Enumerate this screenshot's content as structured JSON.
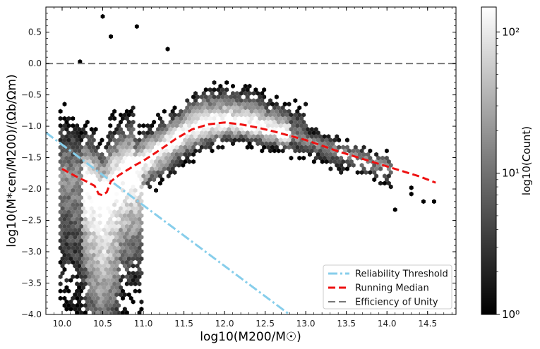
{
  "chart_data": {
    "type": "scatter",
    "subtype": "hexbin-density-with-lines",
    "title": "",
    "xlabel": "log10(M200/M☉)",
    "ylabel": "log10(M*cen/M200)/(Ωb/Ωm)",
    "xlim": [
      9.8,
      14.85
    ],
    "ylim": [
      -4.0,
      0.9
    ],
    "x_ticks": [
      "10.0",
      "10.5",
      "11.0",
      "11.5",
      "12.0",
      "12.5",
      "13.0",
      "13.5",
      "14.0",
      "14.5"
    ],
    "y_ticks": [
      "0.5",
      "0.0",
      "−0.5",
      "−1.0",
      "−1.5",
      "−2.0",
      "−2.5",
      "−3.0",
      "−3.5",
      "−4.0"
    ],
    "colorbar": {
      "label": "log10(Count)",
      "scale": "log",
      "range": [
        1,
        150
      ],
      "ticks": [
        "10⁰",
        "10¹",
        "10²"
      ],
      "colormap": "greys-reversed"
    },
    "series": [
      {
        "name": "Reliability Threshold",
        "style": "dashdot",
        "color": "#87ceeb",
        "x": [
          9.8,
          12.8
        ],
        "y": [
          -1.1,
          -4.0
        ]
      },
      {
        "name": "Running Median",
        "style": "dashed",
        "color": "#ee1111",
        "x": [
          10.0,
          10.1,
          10.2,
          10.3,
          10.4,
          10.45,
          10.5,
          10.55,
          10.6,
          10.7,
          10.8,
          10.9,
          11.0,
          11.2,
          11.4,
          11.6,
          11.8,
          12.0,
          12.2,
          12.4,
          12.6,
          12.8,
          13.0,
          13.2,
          13.4,
          13.6,
          13.8,
          14.0,
          14.2,
          14.4,
          14.6
        ],
        "y": [
          -1.68,
          -1.75,
          -1.82,
          -1.88,
          -1.95,
          -2.08,
          -2.1,
          -2.05,
          -1.88,
          -1.78,
          -1.7,
          -1.62,
          -1.55,
          -1.38,
          -1.2,
          -1.05,
          -0.97,
          -0.94,
          -0.97,
          -1.02,
          -1.08,
          -1.15,
          -1.22,
          -1.31,
          -1.4,
          -1.48,
          -1.56,
          -1.64,
          -1.72,
          -1.8,
          -1.9
        ]
      },
      {
        "name": "Efficiency of Unity",
        "style": "dashed",
        "color": "#777777",
        "x": [
          9.8,
          14.85
        ],
        "y": [
          0.0,
          0.0
        ]
      }
    ],
    "outliers": [
      {
        "x": 10.5,
        "y": 0.75
      },
      {
        "x": 10.6,
        "y": 0.43
      },
      {
        "x": 10.92,
        "y": 0.59
      },
      {
        "x": 10.22,
        "y": 0.03
      },
      {
        "x": 11.3,
        "y": 0.23
      },
      {
        "x": 14.1,
        "y": -2.33
      },
      {
        "x": 14.45,
        "y": -2.2
      },
      {
        "x": 14.58,
        "y": -2.2
      },
      {
        "x": 14.3,
        "y": -1.98
      },
      {
        "x": 14.3,
        "y": -2.08
      }
    ],
    "legend_placement": "bottom-right",
    "grid": false
  }
}
